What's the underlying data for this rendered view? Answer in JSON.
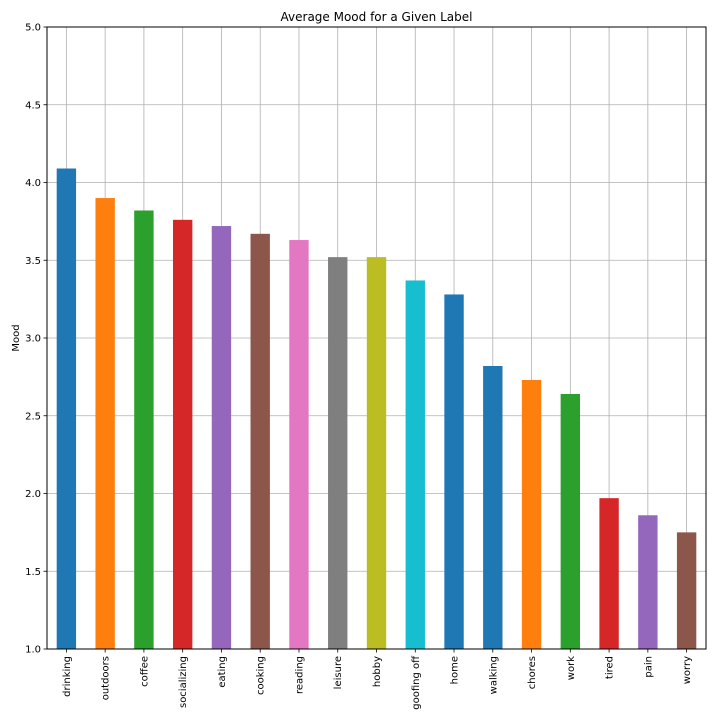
{
  "chart_data": {
    "type": "bar",
    "title": "Average Mood for a Given Label",
    "xlabel": "",
    "ylabel": "Mood",
    "ylim": [
      1.0,
      5.0
    ],
    "yticks": [
      "1.0",
      "1.5",
      "2.0",
      "2.5",
      "3.0",
      "3.5",
      "4.0",
      "4.5",
      "5.0"
    ],
    "grid": true,
    "categories": [
      "drinking",
      "outdoors",
      "coffee",
      "socializing",
      "eating",
      "cooking",
      "reading",
      "leisure",
      "hobby",
      "goofing off",
      "home",
      "walking",
      "chores",
      "work",
      "tired",
      "pain",
      "worry"
    ],
    "values": [
      4.09,
      3.9,
      3.82,
      3.76,
      3.72,
      3.67,
      3.63,
      3.52,
      3.52,
      3.37,
      3.28,
      2.82,
      2.73,
      2.64,
      1.97,
      1.86,
      1.75
    ],
    "colors": [
      "#1f77b4",
      "#ff7f0e",
      "#2ca02c",
      "#d62728",
      "#9467bd",
      "#8c564b",
      "#e377c2",
      "#7f7f7f",
      "#bcbd22",
      "#17becf",
      "#1f77b4",
      "#1f77b4",
      "#ff7f0e",
      "#2ca02c",
      "#d62728",
      "#9467bd",
      "#8c564b"
    ]
  }
}
